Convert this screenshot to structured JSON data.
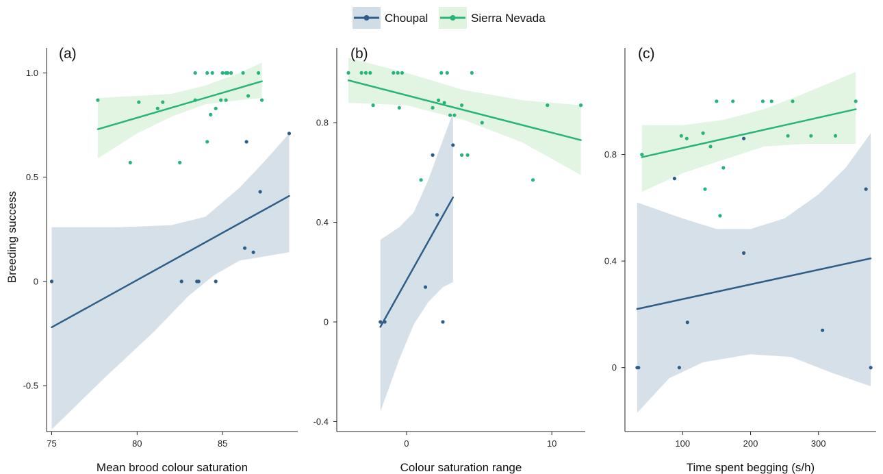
{
  "legend": {
    "entries": [
      {
        "name": "Choupal",
        "color": "#2e5d87",
        "band": "#d0dde6"
      },
      {
        "name": "Sierra Nevada",
        "color": "#27b37c",
        "band": "#dff3df"
      }
    ],
    "placement": "top-center"
  },
  "y_title": "Breeding success",
  "chart_data": [
    {
      "type": "scatter",
      "panel": "(a)",
      "xlabel": "Mean brood colour saturation",
      "ylabel": "Breeding success",
      "xlim": [
        74.7,
        89.4
      ],
      "ylim": [
        -0.72,
        1.12
      ],
      "xticks": [
        "75",
        "80",
        "85"
      ],
      "yticks": [
        "-0.5",
        "0",
        "0.5",
        "1.0"
      ],
      "series": [
        {
          "name": "Choupal",
          "points": [
            [
              75,
              0
            ],
            [
              82.6,
              0
            ],
            [
              83.5,
              0
            ],
            [
              83.6,
              0
            ],
            [
              84.6,
              0
            ],
            [
              86.3,
              0.16
            ],
            [
              86.4,
              0.67
            ],
            [
              86.8,
              0.14
            ],
            [
              87.2,
              0.43
            ],
            [
              88.9,
              0.71
            ]
          ],
          "fit": [
            [
              75,
              -0.22
            ],
            [
              88.9,
              0.41
            ]
          ],
          "ci_upper": [
            [
              75,
              0.26
            ],
            [
              79,
              0.26
            ],
            [
              82,
              0.27
            ],
            [
              84,
              0.31
            ],
            [
              86,
              0.45
            ],
            [
              87.5,
              0.58
            ],
            [
              88.9,
              0.71
            ]
          ],
          "ci_lower": [
            [
              75,
              -0.71
            ],
            [
              78,
              -0.47
            ],
            [
              81,
              -0.24
            ],
            [
              83,
              -0.07
            ],
            [
              84.5,
              0.03
            ],
            [
              86,
              0.1
            ],
            [
              88.9,
              0.14
            ]
          ]
        },
        {
          "name": "Sierra Nevada",
          "points": [
            [
              77.7,
              0.87
            ],
            [
              79.6,
              0.57
            ],
            [
              80.1,
              0.86
            ],
            [
              81.2,
              0.83
            ],
            [
              81.5,
              0.86
            ],
            [
              82.5,
              0.57
            ],
            [
              83.4,
              1.0
            ],
            [
              83.4,
              0.87
            ],
            [
              84.1,
              1.0
            ],
            [
              84.1,
              0.67
            ],
            [
              84.3,
              0.8
            ],
            [
              84.4,
              1.0
            ],
            [
              84.6,
              0.83
            ],
            [
              84.9,
              0.87
            ],
            [
              85.0,
              1.0
            ],
            [
              85.2,
              1.0
            ],
            [
              85.3,
              1.0
            ],
            [
              85.5,
              1.0
            ],
            [
              85.2,
              0.87
            ],
            [
              86.2,
              1.0
            ],
            [
              86.5,
              0.89
            ],
            [
              87.1,
              1.0
            ],
            [
              87.3,
              0.87
            ]
          ],
          "fit": [
            [
              77.7,
              0.73
            ],
            [
              87.3,
              0.96
            ]
          ],
          "ci_upper": [
            [
              77.7,
              0.88
            ],
            [
              80,
              0.89
            ],
            [
              82,
              0.9
            ],
            [
              84,
              0.94
            ],
            [
              86,
              1.0
            ],
            [
              87.3,
              1.05
            ]
          ],
          "ci_lower": [
            [
              77.7,
              0.59
            ],
            [
              80,
              0.71
            ],
            [
              82,
              0.79
            ],
            [
              84,
              0.85
            ],
            [
              86,
              0.87
            ],
            [
              87.3,
              0.88
            ]
          ]
        }
      ]
    },
    {
      "type": "scatter",
      "panel": "(b)",
      "xlabel": "Colour saturation range",
      "ylabel": "",
      "xlim": [
        -4.8,
        12.3
      ],
      "ylim": [
        -0.44,
        1.1
      ],
      "xticks": [
        "0",
        "10"
      ],
      "yticks": [
        "-0.4",
        "0",
        "0.4",
        "0.8"
      ],
      "series": [
        {
          "name": "Choupal",
          "points": [
            [
              -1.8,
              0
            ],
            [
              -1.5,
              0
            ],
            [
              1.3,
              0.14
            ],
            [
              1.8,
              0.67
            ],
            [
              2.1,
              0.43
            ],
            [
              2.5,
              0
            ],
            [
              3.2,
              0.71
            ]
          ],
          "fit": [
            [
              -1.8,
              -0.02
            ],
            [
              3.2,
              0.5
            ]
          ],
          "ci_upper": [
            [
              -1.8,
              0.33
            ],
            [
              -0.5,
              0.38
            ],
            [
              0.5,
              0.44
            ],
            [
              1.5,
              0.57
            ],
            [
              2.5,
              0.73
            ],
            [
              3.2,
              0.84
            ]
          ],
          "ci_lower": [
            [
              -1.8,
              -0.36
            ],
            [
              -0.5,
              -0.15
            ],
            [
              0.5,
              -0.01
            ],
            [
              1.5,
              0.08
            ],
            [
              2.5,
              0.14
            ],
            [
              3.2,
              0.16
            ]
          ]
        },
        {
          "name": "Sierra Nevada",
          "points": [
            [
              -4,
              1.0
            ],
            [
              -3.1,
              1.0
            ],
            [
              -2.8,
              1.0
            ],
            [
              -2.5,
              1.0
            ],
            [
              -2.3,
              0.87
            ],
            [
              -0.9,
              1.0
            ],
            [
              -0.6,
              1.0
            ],
            [
              -0.3,
              1.0
            ],
            [
              -0.5,
              0.86
            ],
            [
              1.0,
              0.57
            ],
            [
              1.8,
              0.86
            ],
            [
              2.2,
              0.89
            ],
            [
              2.4,
              1.0
            ],
            [
              2.6,
              0.88
            ],
            [
              2.8,
              1.0
            ],
            [
              3.0,
              0.83
            ],
            [
              3.3,
              0.83
            ],
            [
              3.8,
              0.87
            ],
            [
              3.8,
              0.67
            ],
            [
              4.2,
              0.67
            ],
            [
              4.5,
              1.0
            ],
            [
              5.2,
              0.8
            ],
            [
              8.7,
              0.57
            ],
            [
              9.7,
              0.87
            ],
            [
              12,
              0.87
            ]
          ],
          "fit": [
            [
              -4,
              0.97
            ],
            [
              12,
              0.73
            ]
          ],
          "ci_upper": [
            [
              -4,
              1.06
            ],
            [
              0,
              1.0
            ],
            [
              4,
              0.93
            ],
            [
              8,
              0.89
            ],
            [
              12,
              0.87
            ]
          ],
          "ci_lower": [
            [
              -4,
              0.88
            ],
            [
              0,
              0.87
            ],
            [
              4,
              0.81
            ],
            [
              8,
              0.72
            ],
            [
              12,
              0.59
            ]
          ]
        }
      ]
    },
    {
      "type": "scatter",
      "panel": "(c)",
      "xlabel": "Time spent begging (s/h)",
      "ylabel": "",
      "xlim": [
        15,
        385
      ],
      "ylim": [
        -0.24,
        1.2
      ],
      "xticks": [
        "100",
        "200",
        "300"
      ],
      "yticks": [
        "0",
        "0.4",
        "0.8"
      ],
      "series": [
        {
          "name": "Choupal",
          "points": [
            [
              33,
              0
            ],
            [
              35,
              0
            ],
            [
              88,
              0.71
            ],
            [
              95,
              0
            ],
            [
              107,
              0.17
            ],
            [
              190,
              0.86
            ],
            [
              190,
              0.43
            ],
            [
              306,
              0.14
            ],
            [
              370,
              0.67
            ],
            [
              377,
              0
            ]
          ],
          "fit": [
            [
              33,
              0.22
            ],
            [
              377,
              0.41
            ]
          ],
          "ci_upper": [
            [
              33,
              0.62
            ],
            [
              100,
              0.56
            ],
            [
              150,
              0.52
            ],
            [
              200,
              0.52
            ],
            [
              250,
              0.56
            ],
            [
              300,
              0.65
            ],
            [
              340,
              0.75
            ],
            [
              377,
              0.88
            ]
          ],
          "ci_lower": [
            [
              33,
              -0.17
            ],
            [
              80,
              -0.04
            ],
            [
              130,
              0.02
            ],
            [
              200,
              0.05
            ],
            [
              260,
              0.04
            ],
            [
              320,
              -0.02
            ],
            [
              377,
              -0.07
            ]
          ]
        },
        {
          "name": "Sierra Nevada",
          "points": [
            [
              40,
              0.8
            ],
            [
              98,
              0.87
            ],
            [
              106,
              0.86
            ],
            [
              130,
              0.88
            ],
            [
              133,
              0.67
            ],
            [
              141,
              0.83
            ],
            [
              150,
              1.0
            ],
            [
              155,
              0.57
            ],
            [
              160,
              0.75
            ],
            [
              174,
              1.0
            ],
            [
              218,
              1.0
            ],
            [
              231,
              1.0
            ],
            [
              255,
              0.87
            ],
            [
              262,
              1.0
            ],
            [
              289,
              0.87
            ],
            [
              325,
              0.87
            ],
            [
              355,
              1.0
            ]
          ],
          "fit": [
            [
              40,
              0.79
            ],
            [
              355,
              0.97
            ]
          ],
          "ci_upper": [
            [
              40,
              0.91
            ],
            [
              100,
              0.91
            ],
            [
              160,
              0.93
            ],
            [
              220,
              0.97
            ],
            [
              280,
              1.03
            ],
            [
              355,
              1.11
            ]
          ],
          "ci_lower": [
            [
              40,
              0.66
            ],
            [
              100,
              0.73
            ],
            [
              160,
              0.78
            ],
            [
              220,
              0.83
            ],
            [
              280,
              0.84
            ],
            [
              355,
              0.84
            ]
          ]
        }
      ]
    }
  ]
}
